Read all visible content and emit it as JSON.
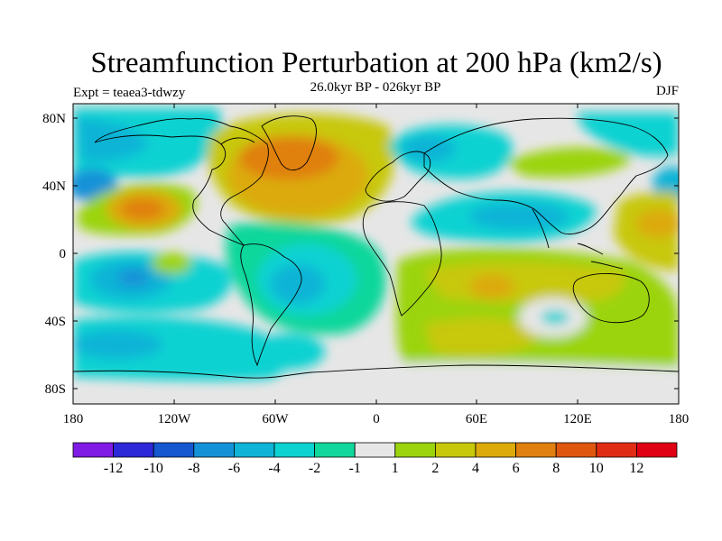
{
  "header": {
    "title": "Streamfunction Perturbation at 200 hPa (km2/s)",
    "subtitle": "26.0kyr BP - 026kyr BP",
    "left": "Expt = teaea3-tdwzy",
    "right": "DJF"
  },
  "map": {
    "projection": "cylindrical-equidistant",
    "lat_ticks": [
      "80N",
      "40N",
      "0",
      "40S",
      "80S"
    ],
    "lon_ticks": [
      "180",
      "120W",
      "60W",
      "0",
      "60E",
      "120E",
      "180"
    ],
    "background_color": "#e6e6e6",
    "coastline_color": "#000000"
  },
  "colorbar": {
    "labels": [
      "-12",
      "-10",
      "-8",
      "-6",
      "-4",
      "-2",
      "-1",
      "1",
      "2",
      "4",
      "6",
      "8",
      "10",
      "12"
    ],
    "colors": [
      "#7f1be4",
      "#2d28d8",
      "#1558d0",
      "#1492d8",
      "#0fb4d6",
      "#0dd2d2",
      "#10d79b",
      "#e6e6e6",
      "#9bd40c",
      "#c8c80a",
      "#dcaa0a",
      "#e08010",
      "#e05810",
      "#e02c14",
      "#e00014"
    ]
  }
}
